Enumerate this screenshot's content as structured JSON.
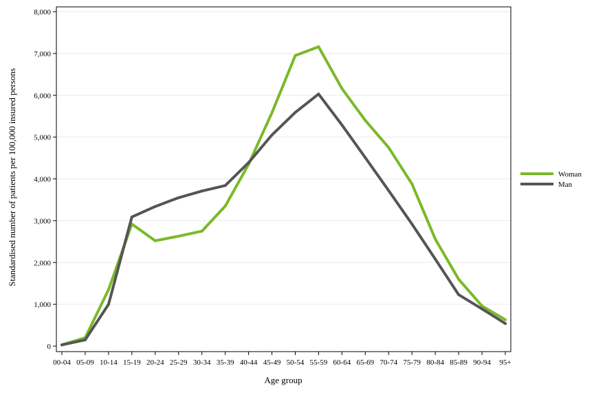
{
  "chart_data": {
    "type": "line",
    "title": "",
    "xlabel": "Age group",
    "ylabel": "Standardised number of patients per 100,000 insured persons",
    "categories": [
      "00-04",
      "05-09",
      "10-14",
      "15-19",
      "20-24",
      "25-29",
      "30-34",
      "35-39",
      "40-44",
      "45-49",
      "50-54",
      "55-59",
      "60-64",
      "65-69",
      "70-74",
      "75-79",
      "80-84",
      "85-89",
      "90-94",
      "95+"
    ],
    "series": [
      {
        "name": "Woman",
        "color": "#7ab929",
        "values": [
          30,
          200,
          1350,
          2920,
          2520,
          2630,
          2750,
          3350,
          4350,
          5580,
          6950,
          7160,
          6160,
          5400,
          4750,
          3880,
          2560,
          1600,
          960,
          630
        ]
      },
      {
        "name": "Man",
        "color": "#555555",
        "values": [
          30,
          150,
          1000,
          3090,
          3340,
          3550,
          3710,
          3840,
          4390,
          5050,
          5590,
          6030,
          5290,
          4510,
          3720,
          2920,
          2080,
          1230,
          890,
          540
        ]
      }
    ],
    "yticks": [
      "0",
      "1,000",
      "2,000",
      "3,000",
      "4,000",
      "5,000",
      "6,000",
      "7,000",
      "8,000"
    ],
    "ylim": [
      0,
      8000
    ],
    "grid": "horizontal",
    "legend_position": "right"
  }
}
